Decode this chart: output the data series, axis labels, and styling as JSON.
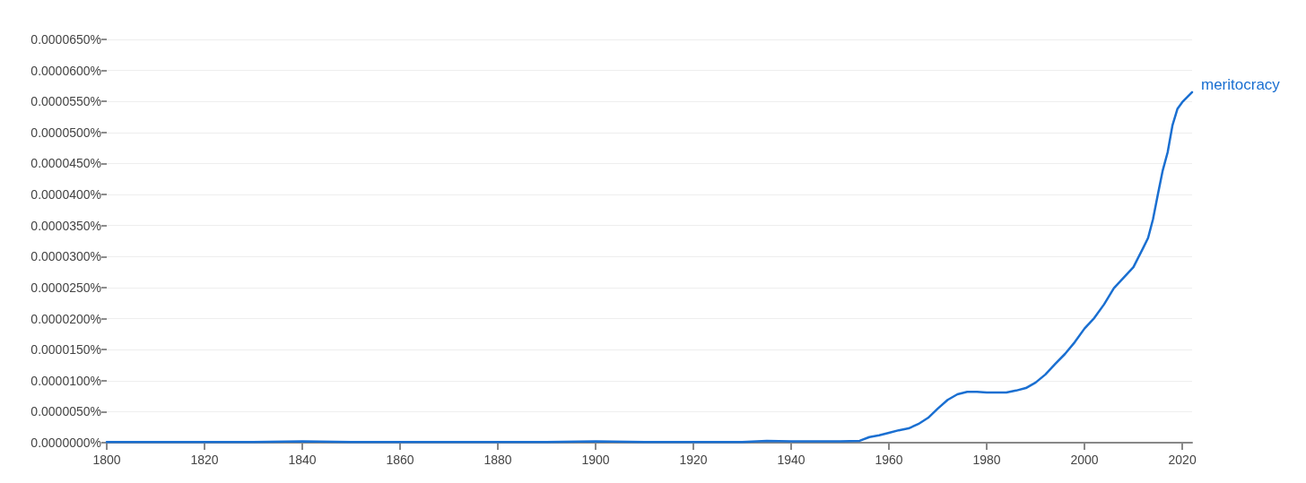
{
  "chart_data": {
    "type": "line",
    "x": [
      1800,
      1810,
      1820,
      1830,
      1840,
      1850,
      1860,
      1870,
      1880,
      1890,
      1900,
      1910,
      1920,
      1930,
      1935,
      1940,
      1945,
      1950,
      1954,
      1956,
      1958,
      1960,
      1962,
      1964,
      1966,
      1968,
      1970,
      1972,
      1974,
      1976,
      1978,
      1980,
      1982,
      1984,
      1986,
      1988,
      1990,
      1992,
      1994,
      1996,
      1998,
      2000,
      2002,
      2004,
      2006,
      2008,
      2010,
      2012,
      2013,
      2014,
      2015,
      2016,
      2017,
      2018,
      2019,
      2020,
      2022
    ],
    "series": [
      {
        "name": "meritocracy",
        "color": "#1a6fd1",
        "values": [
          1e-07,
          1e-07,
          1e-07,
          1e-07,
          2e-07,
          1e-07,
          1e-07,
          1e-07,
          1e-07,
          1e-07,
          2e-07,
          1e-07,
          1e-07,
          1e-07,
          3e-07,
          2e-07,
          2e-07,
          2e-07,
          3e-07,
          9e-07,
          1.2e-06,
          1.6e-06,
          2e-06,
          2.3e-06,
          3e-06,
          4e-06,
          5.5e-06,
          6.9e-06,
          7.8e-06,
          8.2e-06,
          8.2e-06,
          8.1e-06,
          8.1e-06,
          8.1e-06,
          8.4e-06,
          8.8e-06,
          9.7e-06,
          1.1e-05,
          1.27e-05,
          1.43e-05,
          1.62e-05,
          1.84e-05,
          2.01e-05,
          2.23e-05,
          2.49e-05,
          2.66e-05,
          2.83e-05,
          3.14e-05,
          3.3e-05,
          3.6e-05,
          4e-05,
          4.39e-05,
          4.68e-05,
          5.12e-05,
          5.38e-05,
          5.49e-05,
          5.65e-05
        ]
      }
    ],
    "xlim": [
      1800,
      2022
    ],
    "xticks": [
      1800,
      1820,
      1840,
      1860,
      1880,
      1900,
      1920,
      1940,
      1960,
      1980,
      2000,
      2020
    ],
    "ylim": [
      0,
      6.5e-05
    ],
    "yticks": [
      {
        "value": 0,
        "label": "0.0000000%"
      },
      {
        "value": 5e-06,
        "label": "0.0000050%"
      },
      {
        "value": 1e-05,
        "label": "0.0000100%"
      },
      {
        "value": 1.5e-05,
        "label": "0.0000150%"
      },
      {
        "value": 2e-05,
        "label": "0.0000200%"
      },
      {
        "value": 2.5e-05,
        "label": "0.0000250%"
      },
      {
        "value": 3e-05,
        "label": "0.0000300%"
      },
      {
        "value": 3.5e-05,
        "label": "0.0000350%"
      },
      {
        "value": 4e-05,
        "label": "0.0000400%"
      },
      {
        "value": 4.5e-05,
        "label": "0.0000450%"
      },
      {
        "value": 5e-05,
        "label": "0.0000500%"
      },
      {
        "value": 5.5e-05,
        "label": "0.0000550%"
      },
      {
        "value": 6e-05,
        "label": "0.0000600%"
      },
      {
        "value": 6.5e-05,
        "label": "0.0000650%"
      }
    ],
    "grid": "y",
    "legend": false,
    "marker": "none",
    "line_style": "solid"
  }
}
